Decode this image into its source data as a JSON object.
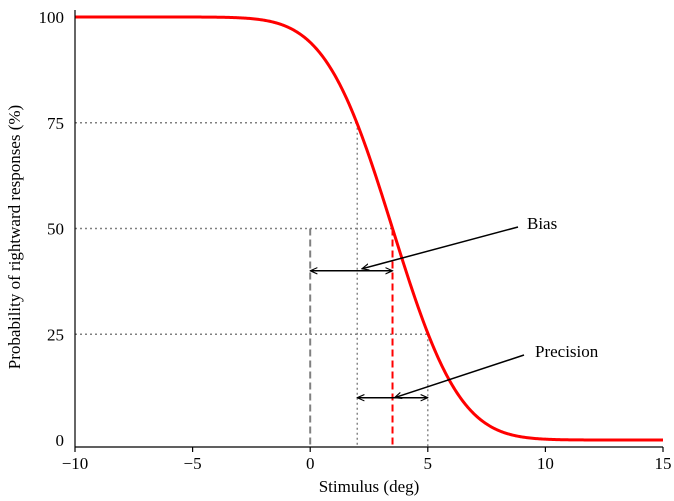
{
  "chart_data": {
    "type": "line",
    "title": "",
    "xlabel": "Stimulus (deg)",
    "ylabel": "Probability of rightward responses (%)",
    "xlim": [
      -10,
      15
    ],
    "ylim": [
      0,
      100
    ],
    "x_ticks": [
      -10,
      -5,
      0,
      5,
      10,
      15
    ],
    "x_tick_labels": [
      "−10",
      "−5",
      "0",
      "5",
      "10",
      "15"
    ],
    "y_ticks": [
      0,
      25,
      50,
      75,
      100
    ],
    "y_tick_labels": [
      "0",
      "25",
      "50",
      "75",
      "100"
    ],
    "grid": false,
    "series": [
      {
        "color": "#ff0000",
        "curve": "cumulative-gaussian-descending",
        "mean": 3.5,
        "sd": 2.25,
        "x": [
          -10,
          -5,
          -2,
          0,
          1,
          2,
          3,
          3.5,
          4,
          5,
          6,
          7,
          8,
          10,
          12,
          15
        ],
        "y": [
          100,
          100,
          99.8,
          94.1,
          86.7,
          74.7,
          58.8,
          50,
          41.2,
          25.3,
          13.3,
          5.9,
          2.3,
          0.2,
          0,
          0
        ]
      }
    ],
    "reference_lines": {
      "percent_levels": [
        25,
        50,
        75
      ],
      "x_75": 2,
      "x_50": 3.5,
      "x_25": 5,
      "x_zero": 0
    },
    "annotations": [
      {
        "label": "Bias",
        "from_x": 0,
        "to_x": 3.5,
        "at_y": 40
      },
      {
        "label": "Precision",
        "from_x": 2,
        "to_x": 5,
        "at_y": 10
      }
    ],
    "colors": {
      "curve": "#ff0000",
      "mean_line": "#ff0000",
      "zero_line": "#808080",
      "reference_dotted": "#808080",
      "axis": "#000000",
      "arrow": "#000000"
    }
  }
}
